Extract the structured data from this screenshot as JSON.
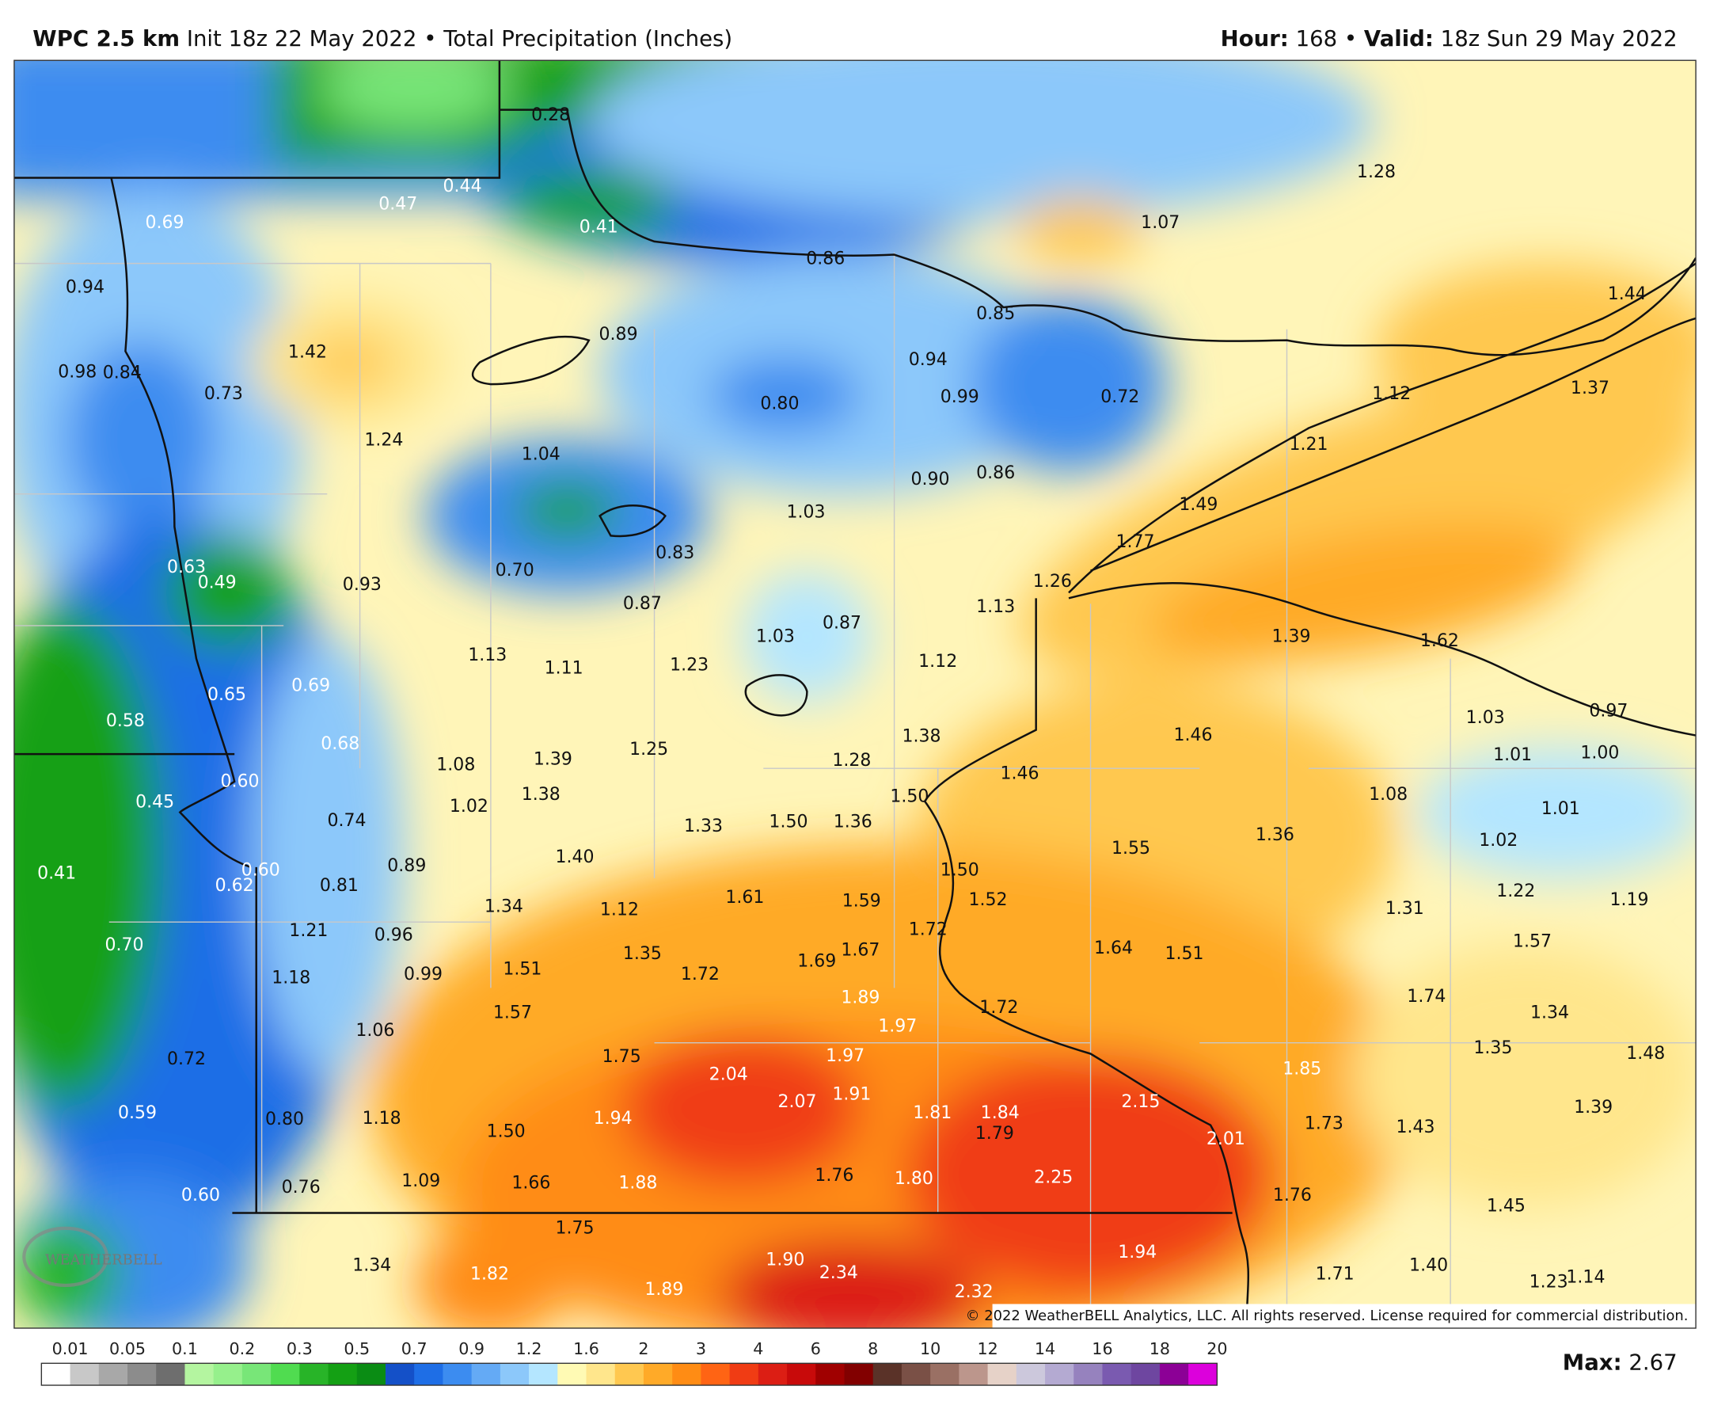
{
  "header": {
    "model": "WPC 2.5 km",
    "init": "Init 18z 22 May 2022",
    "separator": "•",
    "field": "Total Precipitation (Inches)",
    "hour_label": "Hour:",
    "hour": "168",
    "valid_label": "Valid:",
    "valid": "18z Sun 29 May 2022"
  },
  "map": {
    "labels": [
      "0.28",
      "0.44",
      "0.47",
      "0.69",
      "0.41",
      "0.86",
      "1.28",
      "1.07",
      "0.94",
      "1.44",
      "0.85",
      "0.89",
      "1.42",
      "0.94",
      "0.98",
      "0.84",
      "0.73",
      "0.99",
      "0.72",
      "0.80",
      "1.12",
      "1.37",
      "1.24",
      "1.04",
      "1.21",
      "0.90",
      "0.86",
      "1.03",
      "1.49",
      "1.77",
      "0.83",
      "0.63",
      "0.49",
      "0.93",
      "0.70",
      "1.26",
      "0.87",
      "1.13",
      "1.39",
      "1.62",
      "0.87",
      "1.03",
      "1.13",
      "1.11",
      "1.23",
      "1.12",
      "0.65",
      "0.69",
      "0.58",
      "1.03",
      "0.97",
      "1.46",
      "1.38",
      "1.01",
      "1.00",
      "0.68",
      "1.08",
      "1.39",
      "1.25",
      "1.28",
      "1.46",
      "1.08",
      "1.50",
      "0.60",
      "0.45",
      "1.02",
      "1.38",
      "1.01",
      "0.74",
      "1.33",
      "1.50",
      "1.36",
      "1.36",
      "1.02",
      "1.55",
      "1.40",
      "0.89",
      "0.41",
      "0.60",
      "0.62",
      "0.81",
      "1.50",
      "1.22",
      "1.19",
      "1.52",
      "1.61",
      "1.59",
      "1.31",
      "1.34",
      "1.12",
      "1.21",
      "0.96",
      "1.72",
      "0.70",
      "1.57",
      "1.64",
      "1.51",
      "1.35",
      "1.69",
      "1.67",
      "0.99",
      "1.18",
      "1.51",
      "1.72",
      "1.89",
      "1.74",
      "1.72",
      "1.97",
      "1.34",
      "1.57",
      "1.06",
      "1.35",
      "1.48",
      "0.72",
      "1.75",
      "1.97",
      "2.04",
      "1.85",
      "1.91",
      "2.07",
      "2.15",
      "1.39",
      "0.59",
      "1.94",
      "1.81",
      "1.84",
      "1.79",
      "2.01",
      "1.73",
      "1.43",
      "0.80",
      "1.18",
      "1.50",
      "1.76",
      "1.80",
      "2.25",
      "1.09",
      "1.66",
      "1.88",
      "0.76",
      "0.60",
      "1.76",
      "1.45",
      "1.75",
      "1.94",
      "1.34",
      "1.82",
      "1.90",
      "2.34",
      "1.40",
      "1.71",
      "1.23",
      "1.14",
      "1.89",
      "2.32"
    ],
    "copyright": "© 2022 WeatherBELL Analytics, LLC. All rights reserved. License required for commercial distribution.",
    "logo": "WEATHERBELL"
  },
  "colorbar": {
    "ticks": [
      0.01,
      0.05,
      0.1,
      0.2,
      0.3,
      0.5,
      0.7,
      0.9,
      1.2,
      1.6,
      2,
      3,
      4,
      6,
      8,
      10,
      12,
      14,
      16,
      18,
      20
    ],
    "colors": [
      "#ffffff",
      "#c8c8c8",
      "#a8a8a8",
      "#8c8c8c",
      "#6e6e6e",
      "#b4f5a0",
      "#96f08c",
      "#78e678",
      "#50dc50",
      "#28b428",
      "#14a014",
      "#0a8c14",
      "#1450c8",
      "#1e6ee6",
      "#3c8cf0",
      "#64aaf5",
      "#8cc8fa",
      "#b4e6ff",
      "#fffab4",
      "#ffe68c",
      "#ffc850",
      "#ffaa28",
      "#ff8c14",
      "#ff6414",
      "#f03c14",
      "#dc1e14",
      "#c80a0a",
      "#a00000",
      "#820000",
      "#5a3228",
      "#7a5046",
      "#9a7064",
      "#bc968c",
      "#e6d2c8",
      "#ccc8dc",
      "#b4aad2",
      "#9682be",
      "#7a5ab0",
      "#6e46a0",
      "#8c0096",
      "#dc00dc"
    ]
  },
  "footer": {
    "max_label": "Max:",
    "max": "2.67"
  }
}
